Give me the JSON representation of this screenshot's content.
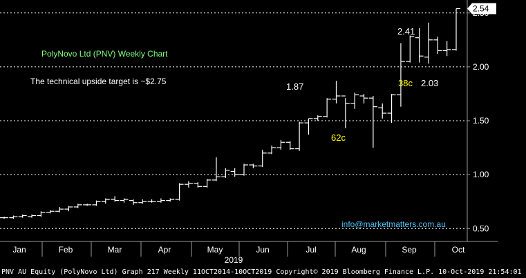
{
  "chart_data": {
    "type": "ohlc",
    "title": "PolyNovo Ltd (PNV) Weekly Chart",
    "subtitle": "The technical upside target is  ~$2.75",
    "ylim": [
      0.38,
      2.62
    ],
    "y_ticks": [
      "0.50",
      "1.00",
      "1.50",
      "2.00",
      "2.50"
    ],
    "y_tick_values": [
      0.5,
      1.0,
      1.5,
      2.0,
      2.5
    ],
    "x_ticks": [
      "Jan",
      "Feb",
      "Mar",
      "Apr",
      "May",
      "Jun",
      "Jul",
      "Aug",
      "Sep",
      "Oct"
    ],
    "x_year": "2019",
    "grid": true,
    "last_price": "2.54",
    "last_value": 2.54,
    "annotations": [
      {
        "text": "1.87",
        "color": "#ffffff"
      },
      {
        "text": "62c",
        "color": "#ffff00"
      },
      {
        "text": "2.41",
        "color": "#ffffff"
      },
      {
        "text": "38c",
        "color": "#ffff00"
      },
      {
        "text": "2.03",
        "color": "#ffffff"
      }
    ],
    "contact": "info@marketmatters.com.au",
    "bars": [
      {
        "o": 0.6,
        "h": 0.61,
        "l": 0.59,
        "c": 0.6
      },
      {
        "o": 0.6,
        "h": 0.62,
        "l": 0.59,
        "c": 0.61
      },
      {
        "o": 0.61,
        "h": 0.63,
        "l": 0.6,
        "c": 0.62
      },
      {
        "o": 0.61,
        "h": 0.63,
        "l": 0.6,
        "c": 0.62
      },
      {
        "o": 0.62,
        "h": 0.66,
        "l": 0.61,
        "c": 0.65
      },
      {
        "o": 0.65,
        "h": 0.67,
        "l": 0.64,
        "c": 0.66
      },
      {
        "o": 0.66,
        "h": 0.7,
        "l": 0.65,
        "c": 0.68
      },
      {
        "o": 0.68,
        "h": 0.71,
        "l": 0.66,
        "c": 0.7
      },
      {
        "o": 0.7,
        "h": 0.73,
        "l": 0.69,
        "c": 0.72
      },
      {
        "o": 0.72,
        "h": 0.73,
        "l": 0.71,
        "c": 0.72
      },
      {
        "o": 0.72,
        "h": 0.76,
        "l": 0.71,
        "c": 0.75
      },
      {
        "o": 0.75,
        "h": 0.78,
        "l": 0.73,
        "c": 0.77
      },
      {
        "o": 0.77,
        "h": 0.8,
        "l": 0.75,
        "c": 0.76
      },
      {
        "o": 0.76,
        "h": 0.78,
        "l": 0.74,
        "c": 0.77
      },
      {
        "o": 0.76,
        "h": 0.77,
        "l": 0.72,
        "c": 0.74
      },
      {
        "o": 0.74,
        "h": 0.77,
        "l": 0.73,
        "c": 0.75
      },
      {
        "o": 0.75,
        "h": 0.77,
        "l": 0.74,
        "c": 0.75
      },
      {
        "o": 0.75,
        "h": 0.78,
        "l": 0.74,
        "c": 0.76
      },
      {
        "o": 0.76,
        "h": 0.78,
        "l": 0.75,
        "c": 0.77
      },
      {
        "o": 0.77,
        "h": 0.92,
        "l": 0.76,
        "c": 0.91
      },
      {
        "o": 0.91,
        "h": 0.94,
        "l": 0.88,
        "c": 0.92
      },
      {
        "o": 0.92,
        "h": 0.93,
        "l": 0.88,
        "c": 0.89
      },
      {
        "o": 0.89,
        "h": 0.96,
        "l": 0.88,
        "c": 0.95
      },
      {
        "o": 0.95,
        "h": 1.16,
        "l": 0.94,
        "c": 0.98
      },
      {
        "o": 0.98,
        "h": 1.06,
        "l": 0.97,
        "c": 1.04
      },
      {
        "o": 1.03,
        "h": 1.06,
        "l": 0.98,
        "c": 1.0
      },
      {
        "o": 1.0,
        "h": 1.1,
        "l": 0.99,
        "c": 1.09
      },
      {
        "o": 1.09,
        "h": 1.1,
        "l": 1.06,
        "c": 1.08
      },
      {
        "o": 1.08,
        "h": 1.23,
        "l": 1.07,
        "c": 1.2
      },
      {
        "o": 1.2,
        "h": 1.27,
        "l": 1.19,
        "c": 1.25
      },
      {
        "o": 1.25,
        "h": 1.32,
        "l": 1.23,
        "c": 1.3
      },
      {
        "o": 1.3,
        "h": 1.31,
        "l": 1.23,
        "c": 1.24
      },
      {
        "o": 1.24,
        "h": 1.49,
        "l": 1.22,
        "c": 1.48
      },
      {
        "o": 1.48,
        "h": 1.52,
        "l": 1.37,
        "c": 1.52
      },
      {
        "o": 1.52,
        "h": 1.55,
        "l": 1.5,
        "c": 1.54
      },
      {
        "o": 1.54,
        "h": 1.71,
        "l": 1.53,
        "c": 1.7
      },
      {
        "o": 1.7,
        "h": 1.87,
        "l": 1.66,
        "c": 1.73
      },
      {
        "o": 1.73,
        "h": 1.71,
        "l": 1.43,
        "c": 1.66
      },
      {
        "o": 1.66,
        "h": 1.76,
        "l": 1.61,
        "c": 1.74
      },
      {
        "o": 1.73,
        "h": 1.75,
        "l": 1.66,
        "c": 1.71
      },
      {
        "o": 1.71,
        "h": 1.73,
        "l": 1.25,
        "c": 1.63
      },
      {
        "o": 1.62,
        "h": 1.66,
        "l": 1.52,
        "c": 1.57
      },
      {
        "o": 1.57,
        "h": 1.75,
        "l": 1.48,
        "c": 1.74
      },
      {
        "o": 1.74,
        "h": 2.22,
        "l": 1.63,
        "c": 2.05
      },
      {
        "o": 2.05,
        "h": 2.29,
        "l": 2.04,
        "c": 2.28
      },
      {
        "o": 2.27,
        "h": 2.36,
        "l": 2.04,
        "c": 2.1
      },
      {
        "o": 2.09,
        "h": 2.41,
        "l": 2.03,
        "c": 2.25
      },
      {
        "o": 2.25,
        "h": 2.28,
        "l": 2.12,
        "c": 2.15
      },
      {
        "o": 2.15,
        "h": 2.24,
        "l": 2.1,
        "c": 2.16
      },
      {
        "o": 2.16,
        "h": 2.54,
        "l": 2.15,
        "c": 2.54
      }
    ]
  },
  "footer": {
    "ticker": "PNV AU Equity (PolyNovo Ltd) Graph 217",
    "period": "Weekly 11OCT2014-10OCT2019",
    "copyright": "Copyright© 2019 Bloomberg Finance L.P.",
    "timestamp": "10-Oct-2019 21:54:01"
  },
  "colors": {
    "background": "#000000",
    "bars": "#ffffff",
    "grid": "#ffffff",
    "title": "#7fff7f",
    "contact": "#4fc3f7",
    "highlight": "#ffff00"
  }
}
